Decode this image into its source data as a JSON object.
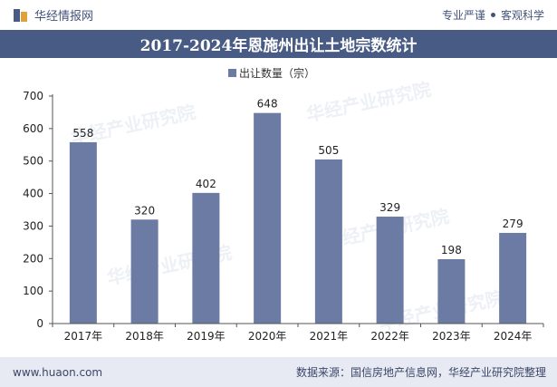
{
  "header": {
    "brand_name": "华经情报网",
    "tagline_left": "专业严谨",
    "tagline_right": "客观科学"
  },
  "chart_data": {
    "type": "bar",
    "title": "2017-2024年恩施州出让土地宗数统计",
    "legend_label": "出让数量（宗）",
    "legend_position": "top-center",
    "categories": [
      "2017年",
      "2018年",
      "2019年",
      "2020年",
      "2021年",
      "2022年",
      "2023年",
      "2024年"
    ],
    "values": [
      558,
      320,
      402,
      648,
      505,
      329,
      198,
      279
    ],
    "ylim": [
      0,
      700
    ],
    "yticks": [
      0,
      100,
      200,
      300,
      400,
      500,
      600,
      700
    ],
    "xlabel": "",
    "ylabel": "",
    "bar_color": "#6b7ba3"
  },
  "footer": {
    "website": "www.huaon.com",
    "source": "数据来源：国信房地产信息网，华经产业研究院整理"
  },
  "watermark": "华经产业研究院"
}
